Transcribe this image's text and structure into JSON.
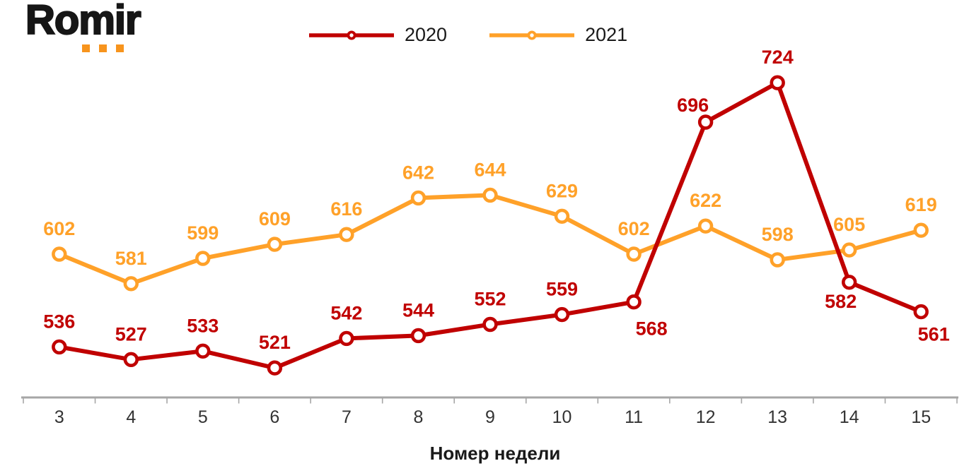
{
  "logo": {
    "text": "Romir",
    "dot_color": "#F7941D"
  },
  "chart_data": {
    "type": "line",
    "title": "",
    "xlabel": "Номер недели",
    "ylabel": "",
    "categories": [
      "3",
      "4",
      "5",
      "6",
      "7",
      "8",
      "9",
      "10",
      "11",
      "12",
      "13",
      "14",
      "15"
    ],
    "series": [
      {
        "name": "2020",
        "color": "#C00000",
        "marker": "circle-open",
        "values": [
          536,
          527,
          533,
          521,
          542,
          544,
          552,
          559,
          568,
          696,
          724,
          582,
          561
        ],
        "label_offsets": {
          "8": [
            25,
            47
          ],
          "9": [
            -18,
            -15
          ],
          "11": [
            -12,
            36
          ],
          "12": [
            18,
            41
          ]
        }
      },
      {
        "name": "2021",
        "color": "#FFA129",
        "marker": "circle-open",
        "values": [
          602,
          581,
          599,
          609,
          616,
          642,
          644,
          629,
          602,
          622,
          598,
          605,
          619
        ],
        "label_offsets": {}
      }
    ],
    "legend_position": "top-center",
    "grid": false,
    "data_labels": "shown, bold, colored per series",
    "ylim": [
      500,
      785
    ],
    "axis_color": "#A6A6A6",
    "tick_label_color": "#333333"
  }
}
